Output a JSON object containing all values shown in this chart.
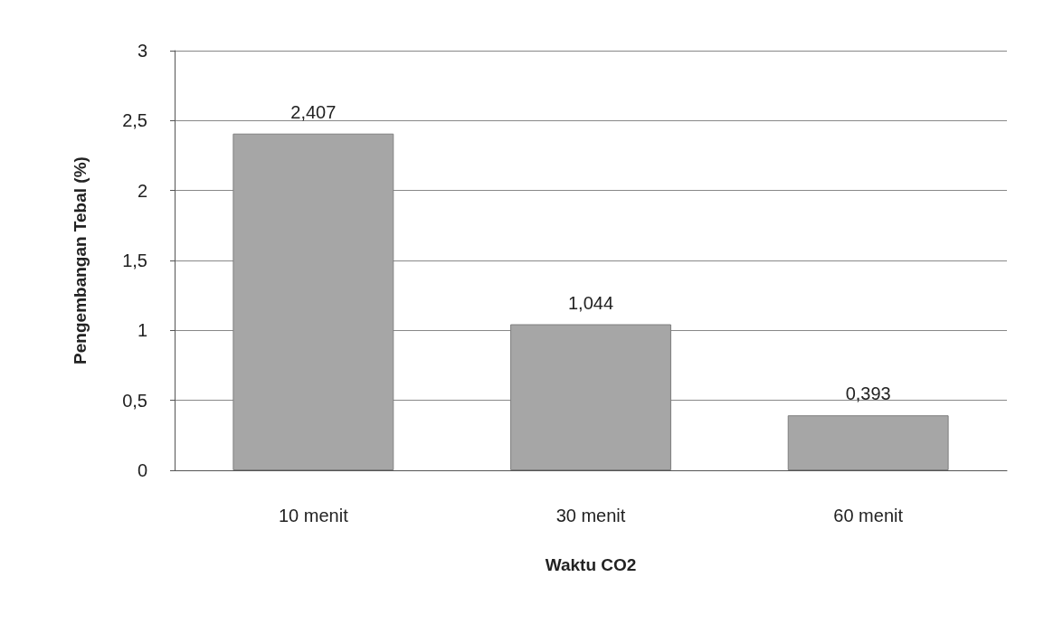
{
  "chart_data": {
    "type": "bar",
    "xlabel": "Waktu CO2",
    "ylabel": "Pengembangan Tebal (%)",
    "categories": [
      "10 menit",
      "30 menit",
      "60 menit"
    ],
    "values": [
      2.407,
      1.044,
      0.393
    ],
    "value_labels": [
      "2,407",
      "1,044",
      "0,393"
    ],
    "color": "#a6a6a6",
    "ylim": [
      0,
      3
    ],
    "yticks": [
      0,
      {
        "value": 0.5,
        "label": "0,5"
      },
      1,
      {
        "value": 1.5,
        "label": "1,5"
      },
      2,
      {
        "value": 2.5,
        "label": "2,5"
      },
      3
    ],
    "grid": "y"
  }
}
